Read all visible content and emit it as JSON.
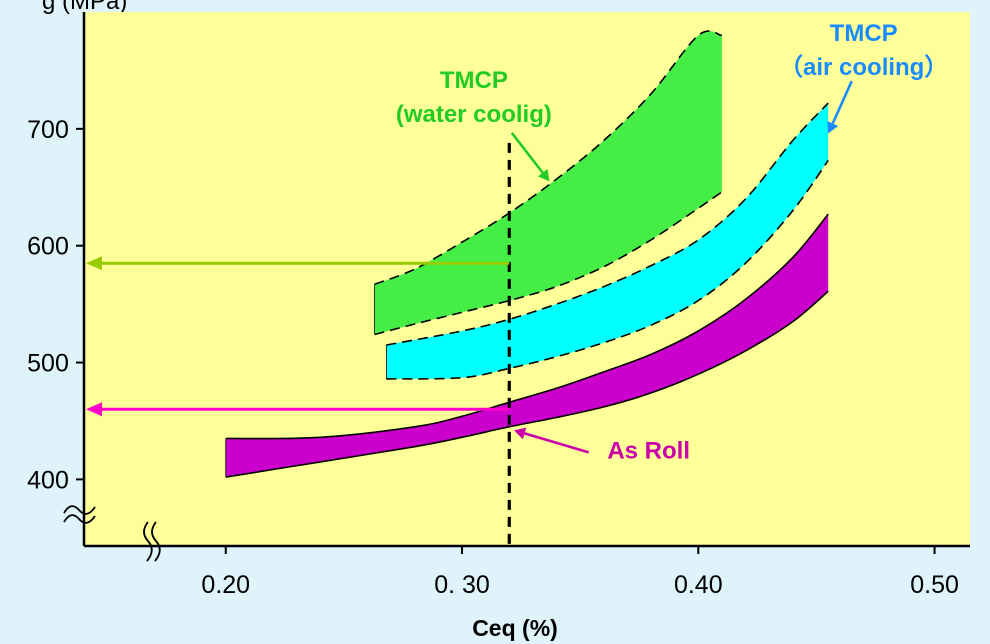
{
  "chart_data": {
    "type": "area",
    "title_fragment": "g (MPa)",
    "xlabel": "Ceq (%)",
    "ylabel": "",
    "xlim": [
      0.14,
      0.515
    ],
    "ylim": [
      343,
      800
    ],
    "x_ticks": [
      {
        "value": 0.2,
        "label": "0.20"
      },
      {
        "value": 0.3,
        "label": "0. 30"
      },
      {
        "value": 0.4,
        "label": "0.40"
      },
      {
        "value": 0.5,
        "label": "0.50"
      }
    ],
    "y_ticks": [
      {
        "value": 700,
        "label": "700"
      },
      {
        "value": 600,
        "label": "600"
      },
      {
        "value": 500,
        "label": "500"
      },
      {
        "value": 400,
        "label": "400"
      }
    ],
    "grid": false,
    "plot_background": "#ffff99",
    "page_background": "#dff3fb",
    "series": [
      {
        "name": "TMCP (water coolig)",
        "color": "#44ee44",
        "x": [
          0.263,
          0.28,
          0.3,
          0.32,
          0.34,
          0.36,
          0.38,
          0.4,
          0.41
        ],
        "upper": [
          567,
          580,
          603,
          628,
          657,
          690,
          730,
          780,
          780
        ],
        "lower": [
          524,
          533,
          543,
          553,
          565,
          582,
          605,
          632,
          646
        ]
      },
      {
        "name": "TMCP (air cooling)",
        "color": "#00ffff",
        "x": [
          0.268,
          0.3,
          0.32,
          0.34,
          0.36,
          0.38,
          0.4,
          0.42,
          0.44,
          0.455
        ],
        "upper": [
          515,
          527,
          537,
          550,
          565,
          583,
          605,
          640,
          690,
          722
        ],
        "lower": [
          486,
          487,
          495,
          505,
          517,
          532,
          553,
          585,
          630,
          673
        ]
      },
      {
        "name": "As Roll",
        "color": "#cc00cc",
        "x": [
          0.2,
          0.24,
          0.28,
          0.3,
          0.32,
          0.34,
          0.36,
          0.38,
          0.4,
          0.42,
          0.44,
          0.455
        ],
        "upper": [
          435,
          436,
          445,
          454,
          466,
          478,
          492,
          507,
          527,
          554,
          590,
          627
        ],
        "lower": [
          402,
          415,
          428,
          436,
          445,
          453,
          462,
          474,
          490,
          510,
          535,
          561
        ]
      }
    ],
    "reference_line": {
      "x": 0.32,
      "y_top": 688,
      "style": "dashed",
      "color": "#000000"
    },
    "arrows": [
      {
        "from_x": 0.32,
        "to_x": 0.14,
        "y": 585,
        "color": "#99cc00"
      },
      {
        "from_x": 0.32,
        "to_x": 0.14,
        "y": 460,
        "color": "#ff00cc"
      }
    ],
    "annotations": [
      {
        "lines": [
          "TMCP",
          "(water coolig)"
        ],
        "color": "#22cc22",
        "x": 0.305,
        "y": 735,
        "pointer_x": 0.337,
        "pointer_y": 655
      },
      {
        "lines": [
          "TMCP",
          "（air cooling）"
        ],
        "color": "#1a8cff",
        "x": 0.47,
        "y": 775,
        "pointer_x": 0.455,
        "pointer_y": 696
      },
      {
        "lines": [
          "As Roll"
        ],
        "color": "#cc00aa",
        "x": 0.379,
        "y": 418,
        "pointer_x": 0.322,
        "pointer_y": 442
      }
    ]
  }
}
